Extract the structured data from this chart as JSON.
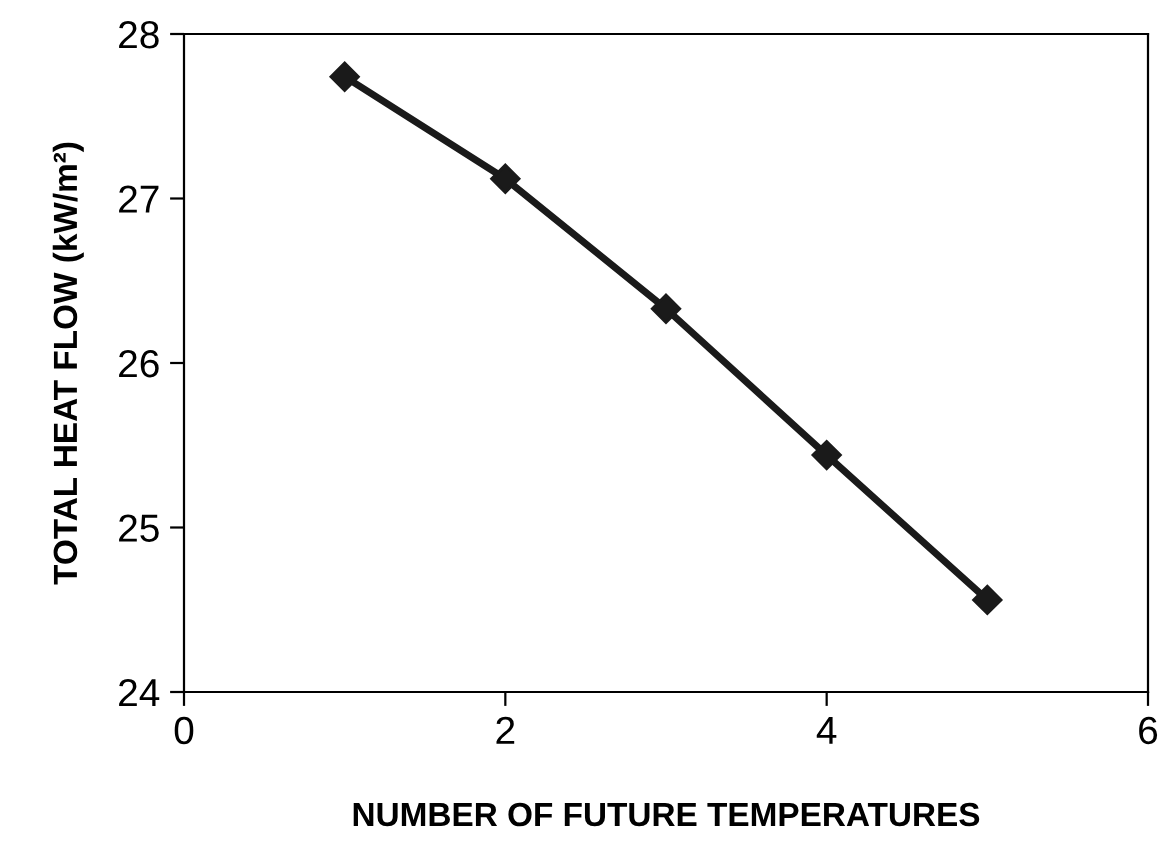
{
  "chart_data": {
    "type": "line",
    "xlabel": "NUMBER OF FUTURE TEMPERATURES",
    "ylabel": "TOTAL HEAT FLOW (kW/m²)",
    "x": [
      1,
      2,
      3,
      4,
      5
    ],
    "series": [
      {
        "color": "#1a1a1a",
        "values": [
          27.74,
          27.12,
          26.33,
          25.44,
          24.56
        ]
      }
    ],
    "xlim": [
      0,
      6
    ],
    "xticks": [
      0,
      2,
      4,
      6
    ],
    "ylim": [
      24,
      28
    ],
    "yticks": [
      24,
      25,
      26,
      27,
      28
    ],
    "marker": "diamond",
    "line_style": "solid",
    "grid": false,
    "legend": false
  }
}
